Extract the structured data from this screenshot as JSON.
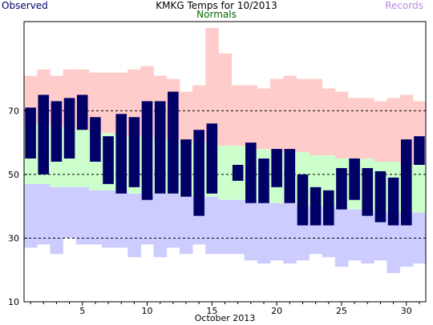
{
  "chart_data": {
    "type": "bar",
    "title": "KMKG Temps for 10/2013",
    "xlabel": "October 2013",
    "ylabel": "",
    "ylim": [
      10,
      98
    ],
    "xlim": [
      0.5,
      31.5
    ],
    "yticks": [
      10,
      30,
      50,
      70
    ],
    "xticks": [
      5,
      10,
      15,
      20,
      25,
      30
    ],
    "grid": "dashed lines at 30, 50, 70",
    "legend": [
      {
        "name": "Observed",
        "color": "#000066",
        "position": "top-left"
      },
      {
        "name": "Normals",
        "color": "#006600",
        "position": "top-center"
      },
      {
        "name": "Records",
        "color": "#bb88dd",
        "position": "top-right"
      }
    ],
    "colors": {
      "observed": "#000066",
      "normal_band": "#ccffcc",
      "record_high_band": "#ffcccc",
      "record_low_band": "#ccccff",
      "grid": "#000000"
    },
    "days": [
      1,
      2,
      3,
      4,
      5,
      6,
      7,
      8,
      9,
      10,
      11,
      12,
      13,
      14,
      15,
      16,
      17,
      18,
      19,
      20,
      21,
      22,
      23,
      24,
      25,
      26,
      27,
      28,
      29,
      30,
      31
    ],
    "record_high": [
      81,
      83,
      81,
      83,
      83,
      82,
      82,
      82,
      83,
      84,
      81,
      80,
      76,
      78,
      96,
      88,
      78,
      78,
      77,
      80,
      81,
      80,
      80,
      77,
      76,
      74,
      74,
      73,
      74,
      75,
      73
    ],
    "record_low": [
      27,
      28,
      25,
      30,
      28,
      28,
      27,
      27,
      24,
      28,
      24,
      27,
      25,
      28,
      25,
      25,
      25,
      23,
      22,
      23,
      22,
      23,
      25,
      24,
      21,
      23,
      22,
      23,
      19,
      21,
      22
    ],
    "normal_high": [
      66,
      66,
      65,
      65,
      64,
      63,
      63,
      62,
      62,
      62,
      61,
      61,
      60,
      60,
      60,
      59,
      59,
      58,
      58,
      57,
      57,
      57,
      56,
      56,
      55,
      55,
      55,
      54,
      54,
      53,
      53
    ],
    "normal_low": [
      47,
      47,
      46,
      46,
      46,
      45,
      45,
      45,
      44,
      44,
      44,
      44,
      43,
      43,
      43,
      42,
      42,
      42,
      41,
      41,
      41,
      40,
      40,
      40,
      39,
      39,
      39,
      38,
      38,
      38,
      38
    ],
    "observed_high": [
      71,
      75,
      73,
      74,
      75,
      68,
      62,
      69,
      68,
      73,
      73,
      76,
      61,
      64,
      66,
      52,
      53,
      60,
      55,
      58,
      58,
      50,
      46,
      45,
      52,
      55,
      52,
      51,
      49,
      61,
      62
    ],
    "observed_low": [
      55,
      50,
      54,
      55,
      64,
      54,
      47,
      44,
      46,
      42,
      44,
      44,
      43,
      37,
      44,
      58,
      48,
      41,
      41,
      46,
      41,
      34,
      34,
      34,
      39,
      42,
      37,
      35,
      34,
      34,
      53
    ]
  }
}
